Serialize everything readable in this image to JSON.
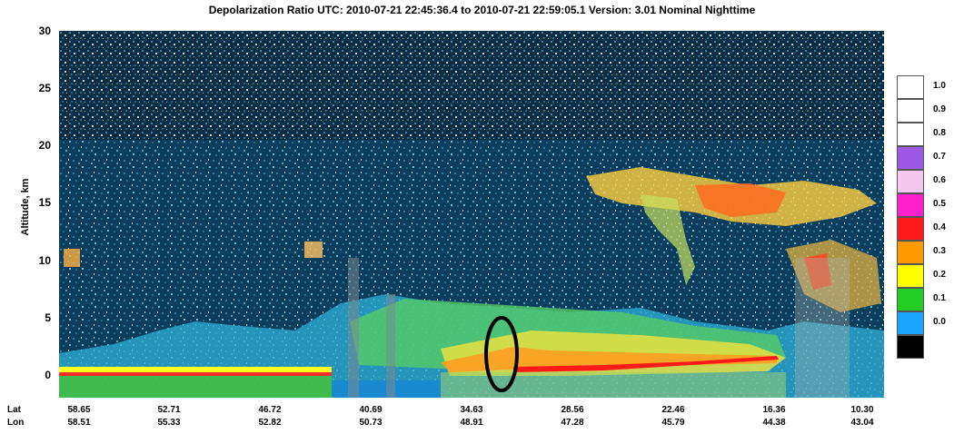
{
  "chart_data": {
    "type": "heatmap",
    "title": "Depolarization Ratio    UTC:  2010-07-21 22:45:36.4  to  2010-07-21 22:59:05.1   Version: 3.01  Nominal  Nighttime",
    "ylabel": "Altitude, km",
    "ylim": [
      -2,
      30
    ],
    "yticks": [
      30,
      25,
      20,
      15,
      10,
      5,
      0
    ],
    "x_rows": [
      {
        "name": "Lat",
        "ticks": [
          "58.65",
          "52.71",
          "46.72",
          "40.69",
          "34.63",
          "28.56",
          "22.46",
          "16.36",
          "10.30"
        ]
      },
      {
        "name": "Lon",
        "ticks": [
          "58.51",
          "55.33",
          "52.82",
          "50.73",
          "48.91",
          "47.28",
          "45.79",
          "44.38",
          "43.04"
        ]
      }
    ],
    "colorbar": {
      "labels": [
        "1.0",
        "0.9",
        "0.8",
        "0.7",
        "0.6",
        "0.5",
        "0.4",
        "0.3",
        "0.2",
        "0.1",
        "0.0"
      ],
      "colors": [
        "#ffffff",
        "#ffffff",
        "#ffffff",
        "#9b59e6",
        "#f5c8f0",
        "#ff22cc",
        "#ff1a1a",
        "#ff9900",
        "#ffff00",
        "#22cc22",
        "#1aa3ff",
        "#000000"
      ]
    },
    "annotation": "black ellipse near Lat 32, Alt 0-4 km",
    "colors": {
      "background_noise": "#0d3d5c"
    }
  }
}
